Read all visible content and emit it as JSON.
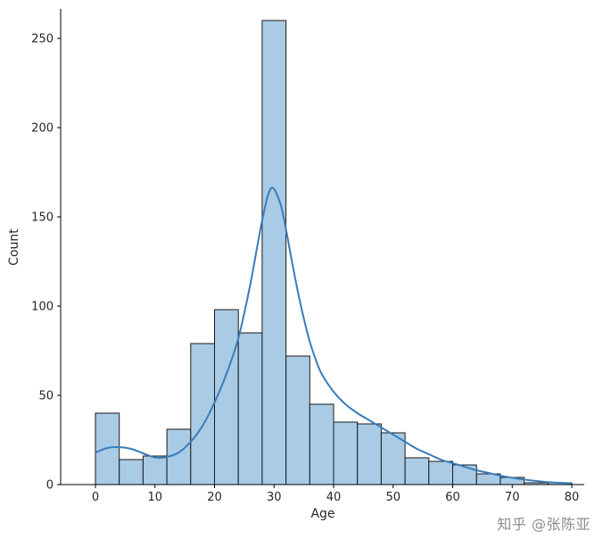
{
  "chart_data": {
    "type": "bar",
    "subtype": "histogram-with-kde",
    "title": "",
    "xlabel": "Age",
    "ylabel": "Count",
    "x_ticks": [
      0,
      10,
      20,
      30,
      40,
      50,
      60,
      70,
      80
    ],
    "y_ticks": [
      0,
      50,
      100,
      150,
      200,
      250
    ],
    "xlim": [
      -5.8,
      82.1
    ],
    "ylim": [
      0,
      266.5
    ],
    "bin_width": 4,
    "bin_starts": [
      0,
      4,
      8,
      12,
      16,
      20,
      24,
      28,
      32,
      36,
      40,
      44,
      48,
      52,
      56,
      60,
      64,
      68,
      72,
      76
    ],
    "values": [
      40,
      14,
      16,
      31,
      79,
      98,
      85,
      260,
      72,
      45,
      35,
      34,
      29,
      15,
      13,
      11,
      6,
      4,
      1,
      1
    ],
    "kde": {
      "x": [
        0,
        2,
        4,
        6,
        8,
        10,
        12,
        14,
        16,
        18,
        20,
        22,
        24,
        26,
        28,
        29.5,
        31,
        32,
        33,
        34,
        35,
        36,
        37,
        38,
        40,
        42,
        44,
        46,
        48,
        50,
        52,
        54,
        56,
        58,
        60,
        62,
        64,
        66,
        68,
        70,
        72,
        74,
        76,
        78,
        80
      ],
      "y": [
        18,
        20.5,
        21,
        20,
        17.5,
        15.2,
        15.5,
        18,
        24,
        33,
        46,
        62,
        82,
        112,
        148,
        166,
        158,
        143,
        125,
        108,
        93,
        80,
        70,
        62,
        52,
        45,
        40,
        36,
        32,
        28,
        24,
        20,
        17,
        14,
        12,
        10,
        8,
        6.5,
        5,
        3.8,
        2.8,
        2,
        1.4,
        1,
        0.7
      ]
    },
    "colors": {
      "bar_fill": "#a9cbe6",
      "bar_edge": "#1a1a1a",
      "kde_line": "#3b7cb8",
      "axis": "#000000",
      "tick_label": "#262626"
    },
    "legend": null,
    "grid": false
  },
  "watermark": {
    "text": "知乎 @张陈亚",
    "color": "#8c8c8c"
  }
}
